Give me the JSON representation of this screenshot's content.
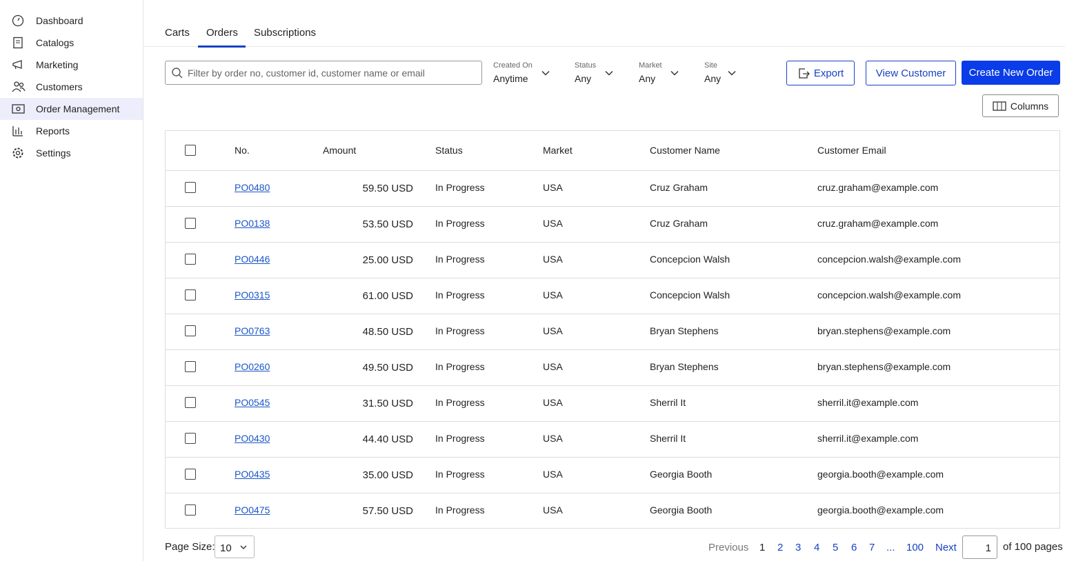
{
  "sidebar": {
    "items": [
      "Dashboard",
      "Catalogs",
      "Marketing",
      "Customers",
      "Order Management",
      "Reports",
      "Settings"
    ]
  },
  "tabs": [
    "Carts",
    "Orders",
    "Subscriptions"
  ],
  "search_placeholder": "Filter by order no, customer id, customer name or email",
  "filters": [
    {
      "label": "Created On",
      "value": "Anytime"
    },
    {
      "label": "Status",
      "value": "Any"
    },
    {
      "label": "Market",
      "value": "Any"
    },
    {
      "label": "Site",
      "value": "Any"
    }
  ],
  "buttons": {
    "export": "Export",
    "view_customer": "View Customer",
    "create_order": "Create New Order",
    "columns": "Columns"
  },
  "table": {
    "columns": [
      "No.",
      "Amount",
      "Status",
      "Market",
      "Customer Name",
      "Customer Email"
    ],
    "rows": [
      [
        "PO0480",
        "59.50 USD",
        "In Progress",
        "USA",
        "Cruz Graham",
        "cruz.graham@example.com"
      ],
      [
        "PO0138",
        "53.50 USD",
        "In Progress",
        "USA",
        "Cruz Graham",
        "cruz.graham@example.com"
      ],
      [
        "PO0446",
        "25.00 USD",
        "In Progress",
        "USA",
        "Concepcion Walsh",
        "concepcion.walsh@example.com"
      ],
      [
        "PO0315",
        "61.00 USD",
        "In Progress",
        "USA",
        "Concepcion Walsh",
        "concepcion.walsh@example.com"
      ],
      [
        "PO0763",
        "48.50 USD",
        "In Progress",
        "USA",
        "Bryan Stephens",
        "bryan.stephens@example.com"
      ],
      [
        "PO0260",
        "49.50 USD",
        "In Progress",
        "USA",
        "Bryan Stephens",
        "bryan.stephens@example.com"
      ],
      [
        "PO0545",
        "31.50 USD",
        "In Progress",
        "USA",
        "Sherril It",
        "sherril.it@example.com"
      ],
      [
        "PO0430",
        "44.40 USD",
        "In Progress",
        "USA",
        "Sherril It",
        "sherril.it@example.com"
      ],
      [
        "PO0435",
        "35.00 USD",
        "In Progress",
        "USA",
        "Georgia Booth",
        "georgia.booth@example.com"
      ],
      [
        "PO0475",
        "57.50 USD",
        "In Progress",
        "USA",
        "Georgia Booth",
        "georgia.booth@example.com"
      ]
    ]
  },
  "pagination": {
    "page_size_label": "Page Size:",
    "page_size": "10",
    "previous": "Previous",
    "pages": [
      "1",
      "2",
      "3",
      "4",
      "5",
      "6",
      "7",
      "...",
      "100"
    ],
    "next": "Next",
    "current": "1",
    "of_pages": "of 100 pages"
  }
}
